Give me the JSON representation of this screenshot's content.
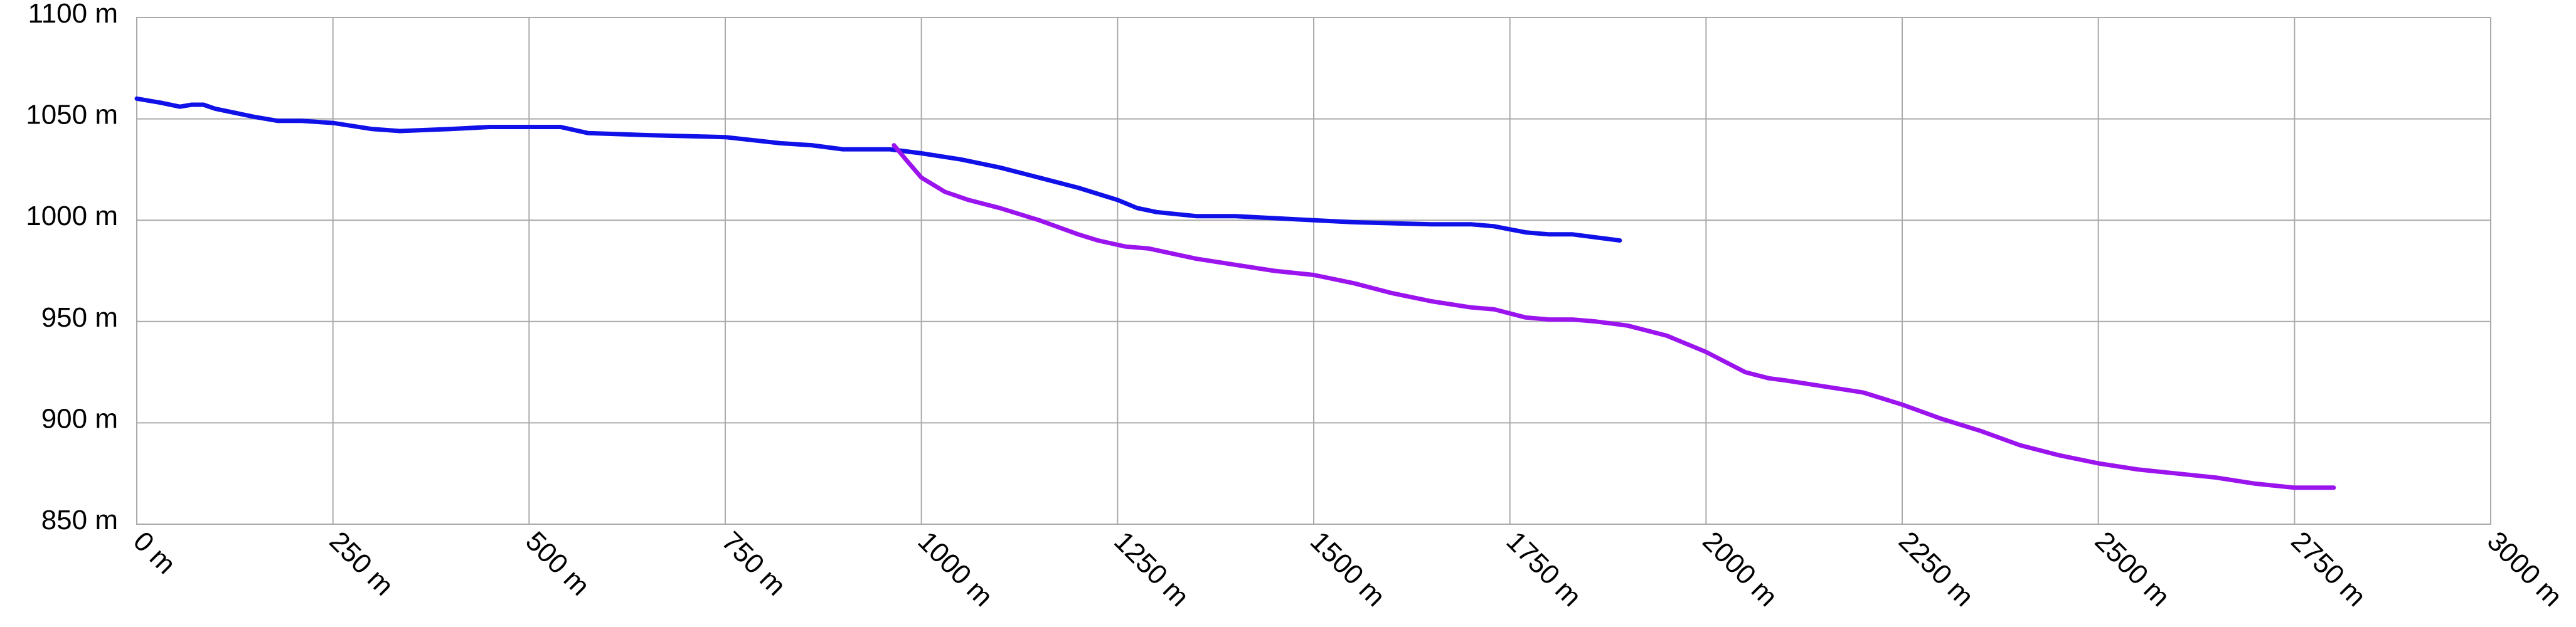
{
  "chart_data": {
    "type": "line",
    "xlim": [
      0,
      3000
    ],
    "ylim": [
      850,
      1100
    ],
    "grid": true,
    "x_ticks": [
      0,
      250,
      500,
      750,
      1000,
      1250,
      1500,
      1750,
      2000,
      2250,
      2500,
      2750,
      3000
    ],
    "x_tick_labels": [
      "0 m",
      "250 m",
      "500 m",
      "750 m",
      "1000 m",
      "1250 m",
      "1500 m",
      "1750 m",
      "2000 m",
      "2250 m",
      "2500 m",
      "2750 m",
      "3000 m"
    ],
    "y_ticks": [
      850,
      900,
      950,
      1000,
      1050,
      1100
    ],
    "y_tick_labels": [
      "850 m",
      "900 m",
      "950 m",
      "1000 m",
      "1050 m",
      "1100 m"
    ],
    "series": [
      {
        "color": "#1010e8",
        "points": [
          [
            0,
            1060
          ],
          [
            30,
            1058
          ],
          [
            55,
            1056
          ],
          [
            70,
            1057
          ],
          [
            85,
            1057
          ],
          [
            100,
            1055
          ],
          [
            150,
            1051
          ],
          [
            180,
            1049
          ],
          [
            210,
            1049
          ],
          [
            250,
            1048
          ],
          [
            300,
            1045
          ],
          [
            335,
            1044
          ],
          [
            400,
            1045
          ],
          [
            450,
            1046
          ],
          [
            520,
            1046
          ],
          [
            540,
            1046
          ],
          [
            575,
            1043
          ],
          [
            650,
            1042
          ],
          [
            750,
            1041
          ],
          [
            820,
            1038
          ],
          [
            860,
            1037
          ],
          [
            900,
            1035
          ],
          [
            960,
            1035
          ],
          [
            1000,
            1033
          ],
          [
            1050,
            1030
          ],
          [
            1100,
            1026
          ],
          [
            1150,
            1021
          ],
          [
            1200,
            1016
          ],
          [
            1250,
            1010
          ],
          [
            1275,
            1006
          ],
          [
            1300,
            1004
          ],
          [
            1350,
            1002
          ],
          [
            1400,
            1002
          ],
          [
            1450,
            1001
          ],
          [
            1500,
            1000
          ],
          [
            1550,
            999
          ],
          [
            1650,
            998
          ],
          [
            1700,
            998
          ],
          [
            1730,
            997
          ],
          [
            1770,
            994
          ],
          [
            1800,
            993
          ],
          [
            1830,
            993
          ],
          [
            1890,
            990
          ]
        ]
      },
      {
        "color": "#9b14ee",
        "points": [
          [
            965,
            1037
          ],
          [
            980,
            1030
          ],
          [
            1000,
            1021
          ],
          [
            1030,
            1014
          ],
          [
            1060,
            1010
          ],
          [
            1100,
            1006
          ],
          [
            1150,
            1000
          ],
          [
            1200,
            993
          ],
          [
            1225,
            990
          ],
          [
            1260,
            987
          ],
          [
            1290,
            986
          ],
          [
            1350,
            981
          ],
          [
            1400,
            978
          ],
          [
            1450,
            975
          ],
          [
            1500,
            973
          ],
          [
            1550,
            969
          ],
          [
            1600,
            964
          ],
          [
            1650,
            960
          ],
          [
            1700,
            957
          ],
          [
            1730,
            956
          ],
          [
            1770,
            952
          ],
          [
            1800,
            951
          ],
          [
            1830,
            951
          ],
          [
            1860,
            950
          ],
          [
            1900,
            948
          ],
          [
            1950,
            943
          ],
          [
            2000,
            935
          ],
          [
            2050,
            925
          ],
          [
            2080,
            922
          ],
          [
            2100,
            921
          ],
          [
            2150,
            918
          ],
          [
            2200,
            915
          ],
          [
            2250,
            909
          ],
          [
            2300,
            902
          ],
          [
            2350,
            896
          ],
          [
            2400,
            889
          ],
          [
            2450,
            884
          ],
          [
            2500,
            880
          ],
          [
            2550,
            877
          ],
          [
            2600,
            875
          ],
          [
            2650,
            873
          ],
          [
            2700,
            870
          ],
          [
            2750,
            868
          ],
          [
            2800,
            868
          ]
        ]
      }
    ]
  }
}
